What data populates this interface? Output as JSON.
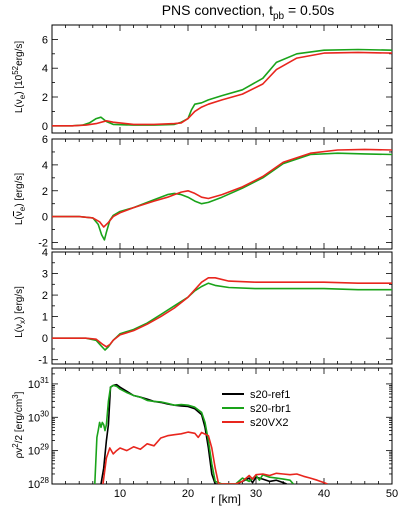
{
  "figure": {
    "title_main": "PNS convection, t",
    "title_sub": "pb",
    "title_rest": " = 0.50s",
    "xlabel": "r [km]"
  },
  "colors": {
    "s20-ref1": "#000000",
    "s20-rbr1": "#1aa31a",
    "s20VX2": "#e8261e"
  },
  "chart_data": [
    {
      "type": "line",
      "ylabel": "L(νe) [10^52 erg/s]",
      "xlim": [
        0,
        50
      ],
      "ylim": [
        -0.5,
        7
      ],
      "xticks": [
        10,
        20,
        30,
        40,
        50
      ],
      "yticks": [
        0,
        2,
        4,
        6
      ],
      "series": [
        {
          "name": "s20-rbr1",
          "x": [
            0,
            3,
            4.5,
            5.5,
            6.5,
            7.2,
            8,
            9,
            12,
            15,
            18,
            19,
            20,
            20.5,
            21,
            22,
            23,
            25,
            28,
            31,
            33,
            36,
            40,
            45,
            50
          ],
          "y": [
            0,
            0,
            0.05,
            0.2,
            0.5,
            0.6,
            0.3,
            0.1,
            0.05,
            0.05,
            0.1,
            0.25,
            0.5,
            1.1,
            1.5,
            1.6,
            1.8,
            2.1,
            2.5,
            3.3,
            4.4,
            5.0,
            5.25,
            5.3,
            5.25
          ]
        },
        {
          "name": "s20VX2",
          "x": [
            0,
            3,
            5,
            6.5,
            8,
            9,
            12,
            15,
            18,
            19,
            20,
            21,
            22,
            23,
            25,
            28,
            31,
            33,
            36,
            40,
            45,
            50
          ],
          "y": [
            0,
            0,
            0.05,
            0.15,
            0.35,
            0.25,
            0.1,
            0.1,
            0.15,
            0.2,
            0.5,
            1.0,
            1.3,
            1.5,
            1.8,
            2.2,
            2.9,
            3.9,
            4.7,
            5.05,
            5.1,
            5.05
          ]
        }
      ]
    },
    {
      "type": "line",
      "ylabel": "L(ν̄e) [erg/s]",
      "xlim": [
        0,
        50
      ],
      "ylim": [
        -2.5,
        6
      ],
      "xticks": [
        10,
        20,
        30,
        40,
        50
      ],
      "yticks": [
        -2,
        0,
        2,
        4,
        6
      ],
      "series": [
        {
          "name": "s20-rbr1",
          "x": [
            0,
            4,
            6,
            6.8,
            7.3,
            7.7,
            8,
            8.5,
            9,
            10,
            12,
            15,
            17,
            18,
            19,
            20,
            21,
            22,
            23,
            25,
            28,
            31,
            34,
            38,
            42,
            46,
            50
          ],
          "y": [
            0,
            0,
            -0.1,
            -0.6,
            -1.4,
            -1.8,
            -1.2,
            -0.3,
            0.1,
            0.4,
            0.7,
            1.3,
            1.7,
            1.8,
            1.7,
            1.5,
            1.2,
            1.0,
            1.1,
            1.5,
            2.2,
            3.0,
            4.1,
            4.8,
            4.9,
            4.85,
            4.8
          ]
        },
        {
          "name": "s20VX2",
          "x": [
            0,
            4,
            6,
            7,
            7.6,
            8.2,
            9,
            10,
            12,
            15,
            17,
            18,
            19,
            20,
            21,
            22,
            23,
            25,
            28,
            31,
            34,
            38,
            42,
            46,
            50
          ],
          "y": [
            0,
            0,
            -0.1,
            -0.4,
            -0.8,
            -0.5,
            0,
            0.3,
            0.7,
            1.2,
            1.5,
            1.7,
            1.9,
            2.0,
            1.8,
            1.5,
            1.4,
            1.7,
            2.3,
            3.1,
            4.2,
            4.9,
            5.15,
            5.2,
            5.15
          ]
        }
      ]
    },
    {
      "type": "line",
      "ylabel": "L(νx) [erg/s]",
      "xlim": [
        0,
        50
      ],
      "ylim": [
        -1.2,
        4
      ],
      "xticks": [
        10,
        20,
        30,
        40,
        50
      ],
      "yticks": [
        -1,
        0,
        1,
        2,
        3,
        4
      ],
      "series": [
        {
          "name": "s20-rbr1",
          "x": [
            0,
            5,
            6.5,
            7.2,
            7.8,
            8.3,
            9,
            10,
            12,
            14,
            16,
            18,
            20,
            21,
            22,
            23,
            24,
            26,
            30,
            35,
            40,
            45,
            50
          ],
          "y": [
            0,
            0,
            -0.1,
            -0.35,
            -0.55,
            -0.4,
            -0.1,
            0.2,
            0.4,
            0.7,
            1.1,
            1.5,
            1.9,
            2.2,
            2.4,
            2.55,
            2.45,
            2.35,
            2.3,
            2.3,
            2.3,
            2.25,
            2.25
          ]
        },
        {
          "name": "s20VX2",
          "x": [
            0,
            5,
            6.5,
            7.5,
            8,
            8.5,
            9,
            10,
            12,
            14,
            16,
            18,
            20,
            21,
            22,
            23,
            24,
            26,
            30,
            35,
            40,
            45,
            50
          ],
          "y": [
            0,
            0,
            -0.05,
            -0.3,
            -0.4,
            -0.3,
            -0.1,
            0.15,
            0.35,
            0.65,
            1.0,
            1.4,
            1.9,
            2.25,
            2.6,
            2.8,
            2.8,
            2.65,
            2.6,
            2.6,
            2.6,
            2.55,
            2.55
          ]
        }
      ]
    },
    {
      "type": "line",
      "ylabel": "ρv²/2 [erg/cm³]",
      "yscale": "log",
      "xlim": [
        0,
        50
      ],
      "ylim": [
        1e+28,
        3e+31
      ],
      "xticks": [
        10,
        20,
        30,
        40,
        50
      ],
      "yticks": [
        1e+28,
        1e+29,
        1e+30,
        1e+31
      ],
      "ytick_labels": [
        "10^28",
        "10^29",
        "10^30",
        "10^31"
      ],
      "legend": {
        "placement": "right-middle",
        "entries": [
          "s20-ref1",
          "s20-rbr1",
          "s20VX2"
        ]
      },
      "series": [
        {
          "name": "s20-ref1",
          "x": [
            7.2,
            7.6,
            8,
            8.3,
            8.6,
            9,
            9.5,
            10,
            11,
            12,
            13,
            14,
            15,
            16,
            17,
            18,
            19,
            20,
            21,
            22,
            22.5,
            23,
            23.5,
            24,
            24.5,
            25,
            26,
            27,
            28,
            29,
            29.5,
            30,
            31,
            32,
            33,
            34,
            34.5
          ],
          "y": [
            1e+28,
            3e+28,
            2e+29,
            6e+29,
            8e+30,
            9e+30,
            9.5e+30,
            8e+30,
            6e+30,
            4.5e+30,
            4e+30,
            3.5e+30,
            3e+30,
            2.8e+30,
            2.5e+30,
            2.3e+30,
            2.2e+30,
            2.1e+30,
            1.8e+30,
            1.2e+30,
            5e+29,
            1.2e+29,
            2e+28,
            1e+28,
            1e+28,
            1e+28,
            1e+28,
            1e+28,
            1.2e+28,
            1.5e+28,
            1.1e+28,
            1.6e+28,
            1.4e+28,
            1.2e+28,
            1.3e+28,
            1.1e+28,
            1e+28
          ]
        },
        {
          "name": "s20-rbr1",
          "x": [
            6.3,
            6.6,
            6.8,
            7,
            7.2,
            7.4,
            7.6,
            7.8,
            8,
            8.3,
            8.6,
            9,
            9.5,
            10,
            11,
            12,
            13,
            14,
            15,
            16,
            17,
            18,
            19,
            20,
            21,
            22,
            22.5,
            23,
            23.5,
            24,
            25,
            26,
            27,
            28,
            29,
            30,
            30.5,
            31,
            32,
            33,
            34,
            35,
            35.5
          ],
          "y": [
            1e+28,
            2.5e+29,
            4e+29,
            7e+29,
            5e+29,
            7e+29,
            6e+29,
            4e+29,
            6e+29,
            3e+30,
            8e+30,
            9e+30,
            8.5e+30,
            7e+30,
            5.5e+30,
            4.5e+30,
            4e+30,
            3.2e+30,
            3e+30,
            2.9e+30,
            2.6e+30,
            2.3e+30,
            2.4e+30,
            2.3e+30,
            2e+30,
            1.4e+30,
            7e+29,
            2e+29,
            4e+28,
            1.2e+28,
            1e+28,
            1e+28,
            1e+28,
            1.5e+28,
            1.2e+28,
            1.8e+28,
            1.3e+28,
            1.9e+28,
            1.6e+28,
            1.5e+28,
            1.4e+28,
            1.3e+28,
            1e+28
          ]
        },
        {
          "name": "s20VX2",
          "x": [
            7.5,
            8,
            8.5,
            9,
            9.5,
            10,
            11,
            12,
            13,
            14,
            15,
            16,
            17,
            18,
            19,
            20,
            21,
            21.5,
            22,
            23,
            23.5,
            24,
            24.5,
            25,
            26,
            27,
            28,
            29,
            29.5,
            30,
            31,
            32,
            33,
            34,
            35,
            36,
            37,
            38,
            39,
            40,
            40.5
          ],
          "y": [
            1e+28,
            6e+28,
            1.2e+29,
            8e+28,
            1e+29,
            1.2e+29,
            1e+29,
            1.3e+29,
            1.1e+29,
            1.6e+29,
            1.4e+29,
            2.4e+29,
            2.8e+29,
            3e+29,
            3.2e+29,
            3.6e+29,
            3.3e+29,
            2.5e+29,
            3.5e+29,
            2.8e+29,
            1.2e+29,
            3e+28,
            1e+28,
            1e+28,
            1e+28,
            1e+28,
            1.2e+28,
            1.8e+28,
            1.4e+28,
            1.9e+28,
            2e+28,
            1.8e+28,
            2.1e+28,
            2e+28,
            1.9e+28,
            2e+28,
            1.7e+28,
            1.5e+28,
            1.3e+28,
            1.1e+28,
            1e+28
          ]
        }
      ]
    }
  ]
}
